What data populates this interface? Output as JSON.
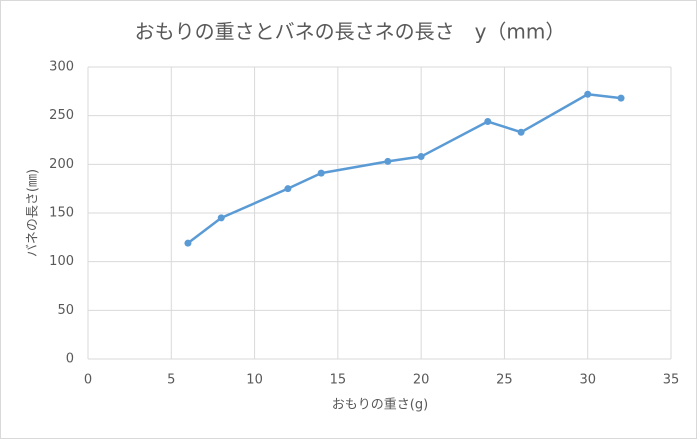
{
  "chart_data": {
    "type": "line",
    "title": "おもりの重さとバネの長さネの長さ　y（mm）",
    "x_label": "おもりの重さ(g)",
    "y_label": "バネの長さ(㎜)",
    "x": [
      6,
      8,
      12,
      14,
      18,
      20,
      24,
      26,
      30,
      32
    ],
    "values": [
      119,
      145,
      175,
      191,
      203,
      208,
      244,
      233,
      272,
      268
    ],
    "color": "#5b9bd5",
    "xlim": [
      0,
      35
    ],
    "xticks": [
      0,
      5,
      10,
      15,
      20,
      25,
      30,
      35
    ],
    "ylim": [
      0,
      300
    ],
    "yticks": [
      0,
      50,
      100,
      150,
      200,
      250,
      300
    ],
    "grid": true
  }
}
